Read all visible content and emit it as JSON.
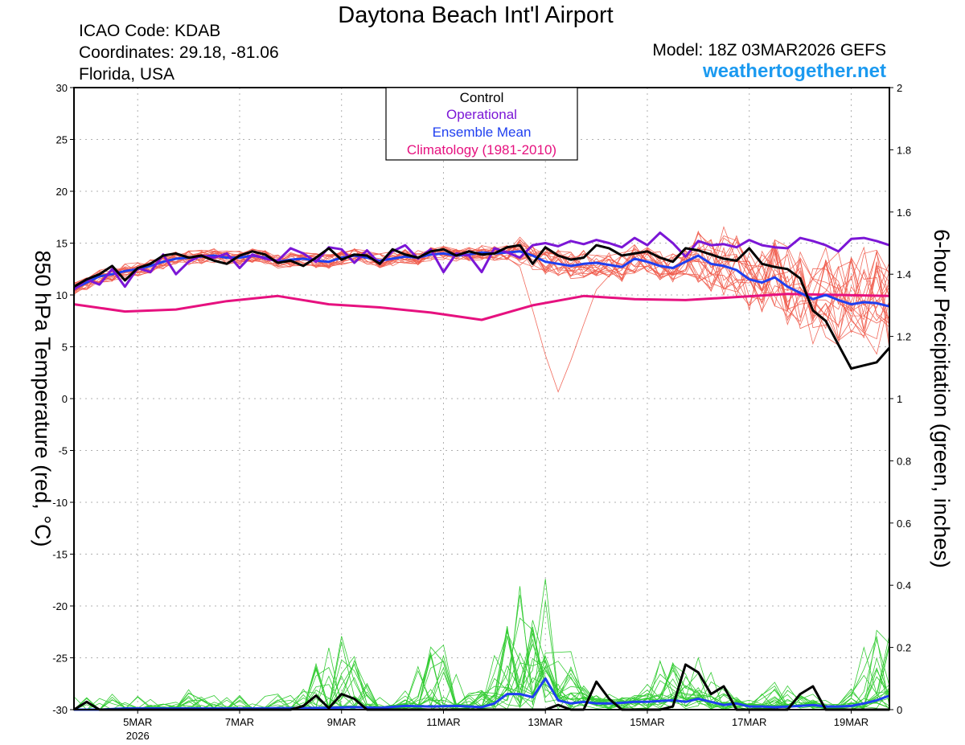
{
  "header": {
    "title": "Daytona Beach Int'l Airport",
    "icao": "ICAO Code: KDAB",
    "coordinates": "Coordinates: 29.18, -81.06",
    "region": "Florida, USA",
    "model": "Model: 18Z 03MAR2026 GEFS",
    "site": "weathertogether.net"
  },
  "colors": {
    "members_temp": "#f05a4a",
    "members_precip": "#33cc33",
    "control": "#000000",
    "operational": "#7b16d6",
    "ensemble_mean": "#1f3ff0",
    "climatology": "#e6117f",
    "site": "#1b9af0"
  },
  "chart_data": {
    "type": "line",
    "title": "Daytona Beach Int'l Airport",
    "ylabel": "850 hPa Temperature (red, °C)",
    "y2label": "6-hour Precipitation (green, inches)",
    "xlim": [
      3.75,
      19.75
    ],
    "ylim": [
      -30,
      30
    ],
    "y2lim": [
      0,
      2
    ],
    "grid": true,
    "legend_position": "top-center",
    "legend": [
      {
        "label": "Control",
        "color": "#000000"
      },
      {
        "label": "Operational",
        "color": "#7b16d6"
      },
      {
        "label": "Ensemble Mean",
        "color": "#1f3ff0"
      },
      {
        "label": "Climatology (1981-2010)",
        "color": "#e6117f"
      }
    ],
    "x_ticks": [
      {
        "day": 5,
        "label": "5MAR",
        "sub": "2026"
      },
      {
        "day": 7,
        "label": "7MAR"
      },
      {
        "day": 9,
        "label": "9MAR"
      },
      {
        "day": 11,
        "label": "11MAR"
      },
      {
        "day": 13,
        "label": "13MAR"
      },
      {
        "day": 15,
        "label": "15MAR"
      },
      {
        "day": 17,
        "label": "17MAR"
      },
      {
        "day": 19,
        "label": "19MAR"
      }
    ],
    "y_ticks": [
      -30,
      -25,
      -20,
      -15,
      -10,
      -5,
      0,
      5,
      10,
      15,
      20,
      25,
      30
    ],
    "y2_ticks": [
      "0",
      "0.2",
      "0.4",
      "0.6",
      "0.8",
      "1",
      "1.2",
      "1.4",
      "1.6",
      "1.8",
      "2"
    ],
    "series": [
      {
        "name": "Climatology (1981-2010)",
        "kind": "temp",
        "color": "#e6117f",
        "width": 3,
        "x": [
          3.75,
          4.75,
          5.75,
          6.75,
          7.75,
          8.75,
          9.75,
          10.75,
          11.75,
          12.75,
          13.75,
          14.75,
          15.75,
          16.75,
          17.75,
          18.75,
          19.75
        ],
        "y": [
          9.1,
          8.4,
          8.6,
          9.4,
          9.9,
          9.1,
          8.8,
          8.3,
          7.6,
          9.0,
          9.9,
          9.6,
          9.5,
          9.8,
          10.1,
          10.0,
          9.9
        ]
      },
      {
        "name": "Ensemble Mean",
        "kind": "temp",
        "color": "#1f3ff0",
        "width": 3,
        "x": [
          3.75,
          4.0,
          4.25,
          4.5,
          4.75,
          5.0,
          5.25,
          5.5,
          5.75,
          6.0,
          6.25,
          6.5,
          6.75,
          7.0,
          7.25,
          7.5,
          7.75,
          8.0,
          8.25,
          8.5,
          8.75,
          9.0,
          9.25,
          9.5,
          9.75,
          10.0,
          10.25,
          10.5,
          10.75,
          11.0,
          11.25,
          11.5,
          11.75,
          12.0,
          12.25,
          12.5,
          12.75,
          13.0,
          13.25,
          13.5,
          13.75,
          14.0,
          14.25,
          14.5,
          14.75,
          15.0,
          15.25,
          15.5,
          15.75,
          16.0,
          16.25,
          16.5,
          16.75,
          17.0,
          17.25,
          17.5,
          17.75,
          18.0,
          18.25,
          18.5,
          18.75,
          19.0,
          19.25,
          19.5,
          19.75
        ],
        "y": [
          10.6,
          11.2,
          11.8,
          12.0,
          12.3,
          12.5,
          12.8,
          13.2,
          13.5,
          13.6,
          13.7,
          13.8,
          13.6,
          13.6,
          13.8,
          13.6,
          13.2,
          13.4,
          13.5,
          13.3,
          13.2,
          13.6,
          13.8,
          13.6,
          13.3,
          13.5,
          13.7,
          13.6,
          13.9,
          14.0,
          13.8,
          13.9,
          14.1,
          14.0,
          14.1,
          14.2,
          13.8,
          13.2,
          13.0,
          12.8,
          13.0,
          13.1,
          12.9,
          12.7,
          13.5,
          13.2,
          12.8,
          12.6,
          13.2,
          13.8,
          13.0,
          12.8,
          12.4,
          11.5,
          11.2,
          11.7,
          10.8,
          10.2,
          9.6,
          10.0,
          9.5,
          9.1,
          9.3,
          9.2,
          8.9
        ]
      },
      {
        "name": "Operational",
        "kind": "temp",
        "color": "#7b16d6",
        "width": 3,
        "x": [
          3.75,
          4.0,
          4.25,
          4.5,
          4.75,
          5.0,
          5.25,
          5.5,
          5.75,
          6.0,
          6.25,
          6.5,
          6.75,
          7.0,
          7.25,
          7.5,
          7.75,
          8.0,
          8.25,
          8.5,
          8.75,
          9.0,
          9.25,
          9.5,
          9.75,
          10.0,
          10.25,
          10.5,
          10.75,
          11.0,
          11.25,
          11.5,
          11.75,
          12.0,
          12.25,
          12.5,
          12.75,
          13.0,
          13.25,
          13.5,
          13.75,
          14.0,
          14.25,
          14.5,
          14.75,
          15.0,
          15.25,
          15.5,
          15.75,
          16.0,
          16.25,
          16.5,
          16.75,
          17.0,
          17.25,
          17.5,
          17.75,
          18.0,
          18.25,
          18.5,
          18.75,
          19.0,
          19.25,
          19.5,
          19.75
        ],
        "y": [
          10.5,
          11.5,
          11.0,
          12.5,
          10.8,
          12.6,
          12.2,
          13.9,
          12.0,
          13.2,
          13.8,
          13.6,
          14.0,
          12.6,
          13.9,
          13.5,
          13.3,
          14.5,
          14.0,
          13.2,
          14.6,
          14.4,
          13.1,
          14.3,
          13.0,
          14.2,
          14.8,
          13.5,
          14.4,
          12.2,
          14.0,
          13.8,
          12.2,
          14.5,
          14.1,
          13.6,
          14.8,
          15.0,
          14.7,
          15.2,
          14.9,
          15.3,
          15.0,
          14.6,
          15.5,
          14.8,
          16.0,
          15.0,
          13.7,
          15.2,
          14.8,
          14.9,
          14.6,
          15.3,
          14.8,
          14.6,
          14.5,
          15.5,
          15.2,
          14.8,
          14.2,
          15.4,
          15.5,
          15.2,
          14.8
        ]
      },
      {
        "name": "Control",
        "kind": "temp",
        "color": "#000000",
        "width": 3,
        "x": [
          3.75,
          4.0,
          4.25,
          4.5,
          4.75,
          5.0,
          5.25,
          5.5,
          5.75,
          6.0,
          6.25,
          6.5,
          6.75,
          7.0,
          7.25,
          7.5,
          7.75,
          8.0,
          8.25,
          8.5,
          8.75,
          9.0,
          9.25,
          9.5,
          9.75,
          10.0,
          10.25,
          10.5,
          10.75,
          11.0,
          11.25,
          11.5,
          11.75,
          12.0,
          12.25,
          12.5,
          12.75,
          13.0,
          13.25,
          13.5,
          13.75,
          14.0,
          14.25,
          14.5,
          14.75,
          15.0,
          15.25,
          15.5,
          15.75,
          16.0,
          16.25,
          16.5,
          16.75,
          17.0,
          17.25,
          17.5,
          17.75,
          18.0,
          18.25,
          18.5,
          18.75,
          19.0,
          19.25,
          19.5,
          19.75
        ],
        "y": [
          10.8,
          11.5,
          12.0,
          12.8,
          11.4,
          12.6,
          13.0,
          13.8,
          14.0,
          13.6,
          13.8,
          13.3,
          13.0,
          13.8,
          14.2,
          13.9,
          13.1,
          13.3,
          12.8,
          13.6,
          14.5,
          13.4,
          13.9,
          13.8,
          13.0,
          14.4,
          13.9,
          13.6,
          14.2,
          14.4,
          13.8,
          14.2,
          13.9,
          14.0,
          14.6,
          14.8,
          13.0,
          14.6,
          13.8,
          13.4,
          13.6,
          14.8,
          14.5,
          13.8,
          14.0,
          14.2,
          13.6,
          13.2,
          14.5,
          14.3,
          13.9,
          13.5,
          13.3,
          14.5,
          13.0,
          12.7,
          12.5,
          11.6,
          8.5,
          7.5,
          5.2,
          2.9,
          3.2,
          3.5,
          4.9
        ]
      },
      {
        "name": "Ensemble Mean",
        "kind": "precip",
        "color": "#1f3ff0",
        "width": 3,
        "x": [
          3.75,
          4.25,
          4.75,
          5.25,
          5.75,
          6.25,
          6.75,
          7.25,
          7.75,
          8.25,
          8.75,
          9.25,
          9.75,
          10.25,
          10.75,
          11.25,
          11.75,
          12.0,
          12.25,
          12.5,
          12.75,
          13.0,
          13.25,
          13.5,
          13.75,
          14.0,
          14.25,
          14.5,
          14.75,
          15.0,
          15.25,
          15.5,
          15.75,
          16.0,
          16.25,
          16.5,
          16.75,
          17.0,
          17.25,
          17.5,
          17.75,
          18.0,
          18.25,
          18.5,
          18.75,
          19.0,
          19.25,
          19.5,
          19.75
        ],
        "y": [
          0.0,
          0.0,
          0.004,
          0.004,
          0.004,
          0.004,
          0.004,
          0.004,
          0.005,
          0.005,
          0.006,
          0.008,
          0.006,
          0.012,
          0.01,
          0.012,
          0.008,
          0.02,
          0.05,
          0.05,
          0.04,
          0.1,
          0.03,
          0.02,
          0.025,
          0.02,
          0.02,
          0.022,
          0.025,
          0.025,
          0.028,
          0.03,
          0.025,
          0.035,
          0.025,
          0.015,
          0.02,
          0.01,
          0.01,
          0.008,
          0.01,
          0.012,
          0.015,
          0.01,
          0.01,
          0.012,
          0.02,
          0.03,
          0.045
        ]
      },
      {
        "name": "Control",
        "kind": "precip",
        "color": "#000000",
        "width": 3,
        "x": [
          3.75,
          4.0,
          4.25,
          4.75,
          5.25,
          5.75,
          6.25,
          6.75,
          7.25,
          7.75,
          8.0,
          8.25,
          8.5,
          8.75,
          9.0,
          9.25,
          9.5,
          9.75,
          10.25,
          10.75,
          11.25,
          11.75,
          12.25,
          12.75,
          13.0,
          13.25,
          13.5,
          13.75,
          14.0,
          14.25,
          14.5,
          14.75,
          15.25,
          15.5,
          15.75,
          16.0,
          16.25,
          16.5,
          16.75,
          17.0,
          17.25,
          17.5,
          17.75,
          18.0,
          18.25,
          18.5,
          18.75,
          19.0,
          19.25,
          19.5,
          19.75
        ],
        "y": [
          0.0,
          0.025,
          0.0,
          0.0,
          0.0,
          0.0,
          0.0,
          0.0,
          0.0,
          0.0,
          0.0,
          0.012,
          0.045,
          0.005,
          0.05,
          0.035,
          0.0,
          0.0,
          0.0,
          0.0,
          0.0,
          0.0,
          0.0,
          0.0,
          0.0,
          0.015,
          0.0,
          0.0,
          0.09,
          0.035,
          0.0,
          0.0,
          0.0,
          0.01,
          0.145,
          0.12,
          0.05,
          0.075,
          0.0,
          0.0,
          0.0,
          0.0,
          0.0,
          0.05,
          0.075,
          0.0,
          0.0,
          0.0,
          0.0,
          0.0,
          0.0
        ]
      }
    ]
  }
}
